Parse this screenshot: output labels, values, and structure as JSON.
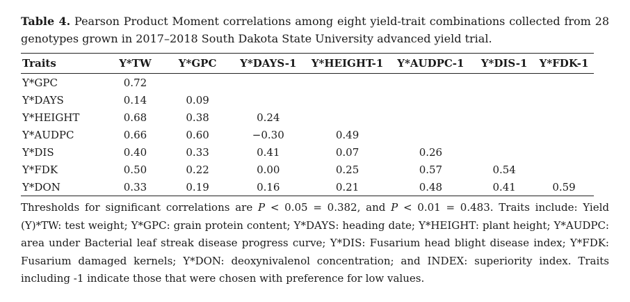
{
  "caption": {
    "label": "Table 4.",
    "text": " Pearson Product Moment correlations among eight yield-trait combinations collected from 28 genotypes grown in 2017–2018 South Dakota State University advanced yield trial."
  },
  "table": {
    "headers": [
      "Traits",
      "Y*TW",
      "Y*GPC",
      "Y*DAYS-1",
      "Y*HEIGHT-1",
      "Y*AUDPC-1",
      "Y*DIS-1",
      "Y*FDK-1"
    ],
    "rows": [
      [
        "Y*GPC",
        "0.72",
        "",
        "",
        "",
        "",
        "",
        ""
      ],
      [
        "Y*DAYS",
        "0.14",
        "0.09",
        "",
        "",
        "",
        "",
        ""
      ],
      [
        "Y*HEIGHT",
        "0.68",
        "0.38",
        "0.24",
        "",
        "",
        "",
        ""
      ],
      [
        "Y*AUDPC",
        "0.66",
        "0.60",
        "−0.30",
        "0.49",
        "",
        "",
        ""
      ],
      [
        "Y*DIS",
        "0.40",
        "0.33",
        "0.41",
        "0.07",
        "0.26",
        "",
        ""
      ],
      [
        "Y*FDK",
        "0.50",
        "0.22",
        "0.00",
        "0.25",
        "0.57",
        "0.54",
        ""
      ],
      [
        "Y*DON",
        "0.33",
        "0.19",
        "0.16",
        "0.21",
        "0.48",
        "0.41",
        "0.59"
      ]
    ]
  },
  "footnote": {
    "part1": "Thresholds for significant correlations are ",
    "p1": "P",
    "part2": " < 0.05 = 0.382, and ",
    "p2": "P",
    "part3": " < 0.01 = 0.483. Traits include: Yield (Y)*TW: test weight; Y*GPC: grain protein content; Y*DAYS: heading date; Y*HEIGHT: plant height; Y*AUDPC: area under Bacterial leaf streak disease progress curve; Y*DIS: Fusarium head blight disease index; Y*FDK: Fusarium damaged kernels; Y*DON: deoxynivalenol concentration; and INDEX: superiority index. Traits including -1 indicate those that were chosen with preference for low values."
  }
}
